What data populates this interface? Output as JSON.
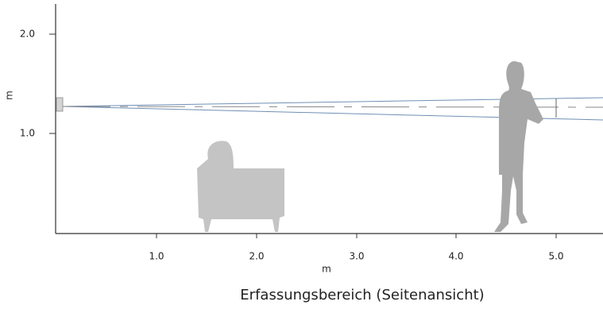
{
  "axes": {
    "x_label": "m",
    "y_label": "m",
    "x_ticks": [
      "1.0",
      "2.0",
      "3.0",
      "4.0",
      "5.0"
    ],
    "y_ticks": [
      "2.0",
      "1.0"
    ]
  },
  "caption": "Erfassungsbereich (Seitenansicht)"
}
